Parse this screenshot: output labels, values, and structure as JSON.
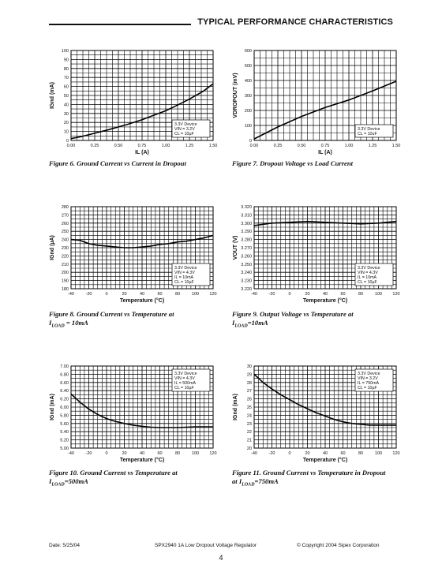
{
  "header": {
    "title": "TYPICAL PERFORMANCE CHARACTERISTICS"
  },
  "chart_data": [
    {
      "id": "fig6",
      "type": "line",
      "xlabel": "IL (A)",
      "ylabel": "IGnd (mA)",
      "xlim": [
        0,
        1.5
      ],
      "ylim": [
        0,
        100
      ],
      "xticks": [
        "0.00",
        "0.25",
        "0.50",
        "0.75",
        "1.00",
        "1.25",
        "1.50"
      ],
      "yticks": [
        "0",
        "10",
        "20",
        "30",
        "40",
        "50",
        "60",
        "70",
        "80",
        "90",
        "100"
      ],
      "x": [
        0,
        0.1,
        0.25,
        0.4,
        0.5,
        0.6,
        0.75,
        0.9,
        1.0,
        1.1,
        1.25,
        1.4,
        1.5
      ],
      "series": [
        {
          "values": [
            2,
            4,
            8,
            12,
            15,
            18,
            23,
            29,
            33,
            38,
            46,
            55,
            63
          ]
        }
      ],
      "legend": [
        "3.3V Device",
        "VIN = 3.2V",
        "CL = 10µF"
      ],
      "legend_place": "bottom-right",
      "caption": "Figure 6. Ground Current vs Current in Dropout"
    },
    {
      "id": "fig7",
      "type": "line",
      "xlabel": "IL (A)",
      "ylabel": "VDROPOUT (mV)",
      "xlim": [
        0,
        1.5
      ],
      "ylim": [
        0,
        600
      ],
      "xticks": [
        "0.00",
        "0.25",
        "0.50",
        "0.75",
        "1.00",
        "1.25",
        "1.50"
      ],
      "yticks": [
        "0",
        "100",
        "200",
        "300",
        "400",
        "500",
        "600"
      ],
      "x": [
        0,
        0.25,
        0.5,
        0.75,
        1.0,
        1.25,
        1.5
      ],
      "series": [
        {
          "values": [
            10,
            90,
            160,
            220,
            270,
            330,
            395
          ]
        }
      ],
      "legend": [
        "3.3V Device",
        "CL = 10uF"
      ],
      "legend_place": "bottom-right",
      "caption": "Figure 7. Dropout Voltage vs Load Current"
    },
    {
      "id": "fig8",
      "type": "line",
      "xlabel": "Temperature (°C)",
      "ylabel": "IGnd (µA)",
      "xlim": [
        -40,
        120
      ],
      "ylim": [
        180,
        280
      ],
      "xticks": [
        "-40",
        "-20",
        "0",
        "20",
        "40",
        "60",
        "80",
        "100",
        "120"
      ],
      "yticks": [
        "180",
        "190",
        "200",
        "210",
        "220",
        "230",
        "240",
        "250",
        "260",
        "270",
        "280"
      ],
      "x": [
        -40,
        -30,
        -20,
        -10,
        0,
        10,
        20,
        30,
        40,
        50,
        60,
        70,
        80,
        90,
        100,
        110,
        120
      ],
      "series": [
        {
          "values": [
            240,
            239,
            235,
            233,
            232,
            231,
            230,
            230,
            231,
            232,
            234,
            235,
            237,
            238,
            240,
            242,
            245
          ]
        }
      ],
      "legend": [
        "3.3V Device",
        "VIN = 4.3V",
        "IL = 10mA",
        "CL = 10µF"
      ],
      "legend_place": "bottom-right",
      "caption": "Figure 8. Ground Current vs Temperature at",
      "caption_sub": "LOAD",
      "caption_tail": " = 10mA"
    },
    {
      "id": "fig9",
      "type": "line",
      "xlabel": "Temperature (°C)",
      "ylabel": "VOUT (V)",
      "xlim": [
        -40,
        120
      ],
      "ylim": [
        3.22,
        3.32
      ],
      "xticks": [
        "-40",
        "-20",
        "0",
        "20",
        "40",
        "60",
        "80",
        "100",
        "120"
      ],
      "yticks": [
        "3.220",
        "3.230",
        "3.240",
        "3.250",
        "3.260",
        "3.270",
        "3.280",
        "3.290",
        "3.300",
        "3.310",
        "3.320"
      ],
      "x": [
        -40,
        -20,
        0,
        20,
        40,
        60,
        80,
        100,
        120
      ],
      "series": [
        {
          "values": [
            3.297,
            3.3,
            3.301,
            3.302,
            3.301,
            3.3,
            3.299,
            3.3,
            3.302
          ]
        }
      ],
      "legend": [
        "3.3V Device",
        "VIN = 4.3V",
        "IL = 10mA",
        "CL = 10µF"
      ],
      "legend_place": "bottom-right",
      "caption": "Figure 9. Output Voltage vs Temperature at",
      "caption_sub": "LOAD",
      "caption_tail": "=10mA"
    },
    {
      "id": "fig10",
      "type": "line",
      "xlabel": "Temperature (°C)",
      "ylabel": "IGnd (mA)",
      "xlim": [
        -40,
        120
      ],
      "ylim": [
        5.0,
        7.0
      ],
      "xticks": [
        "-40",
        "-20",
        "0",
        "20",
        "40",
        "60",
        "80",
        "100",
        "120"
      ],
      "yticks": [
        "5.00",
        "5.20",
        "5.40",
        "5.60",
        "5.80",
        "6.00",
        "6.20",
        "6.40",
        "6.60",
        "6.80",
        "7.00"
      ],
      "x": [
        -40,
        -30,
        -20,
        -10,
        0,
        10,
        20,
        30,
        40,
        50,
        60,
        70,
        80,
        90,
        100,
        110,
        120
      ],
      "series": [
        {
          "values": [
            6.32,
            6.12,
            5.95,
            5.82,
            5.72,
            5.65,
            5.6,
            5.56,
            5.53,
            5.51,
            5.5,
            5.5,
            5.5,
            5.51,
            5.52,
            5.52,
            5.52
          ]
        }
      ],
      "legend": [
        "3.3V Device",
        "VIN = 4.3V",
        "IL = 500mA",
        "CL = 10µF"
      ],
      "legend_place": "top-right",
      "caption": "Figure 10. Ground Current vs Temperature at",
      "caption_sub": "LOAD",
      "caption_tail": "=500mA"
    },
    {
      "id": "fig11",
      "type": "line",
      "xlabel": "Temperature (°C)",
      "ylabel": "IGnd (mA)",
      "xlim": [
        -40,
        120
      ],
      "ylim": [
        20,
        30
      ],
      "xticks": [
        "-40",
        "-20",
        "0",
        "20",
        "40",
        "60",
        "80",
        "100",
        "120"
      ],
      "yticks": [
        "20",
        "21",
        "22",
        "23",
        "24",
        "25",
        "26",
        "27",
        "28",
        "29",
        "30"
      ],
      "x": [
        -40,
        -30,
        -20,
        -10,
        0,
        10,
        20,
        30,
        40,
        50,
        60,
        70,
        80,
        90,
        100,
        110,
        120
      ],
      "series": [
        {
          "values": [
            29.0,
            28.0,
            27.2,
            26.5,
            25.9,
            25.3,
            24.8,
            24.3,
            23.9,
            23.5,
            23.2,
            23.0,
            22.9,
            22.8,
            22.8,
            22.8,
            22.8
          ]
        }
      ],
      "legend": [
        "3.3V Device",
        "VIN = 3.2V",
        "IL = 750mA",
        "CL = 10µF"
      ],
      "legend_place": "top-right",
      "caption": "Figure 11. Ground Current vs Temperature in Dropout",
      "caption2": "at I",
      "caption_sub": "LOAD",
      "caption_tail": "=750mA"
    }
  ],
  "footer": {
    "date": "Date: 5/25/04",
    "product": "SPX2940 1A Low Dropout Voltage Regulator",
    "copyright": "© Copyright 2004 Sipex Corporation",
    "page": "4"
  }
}
